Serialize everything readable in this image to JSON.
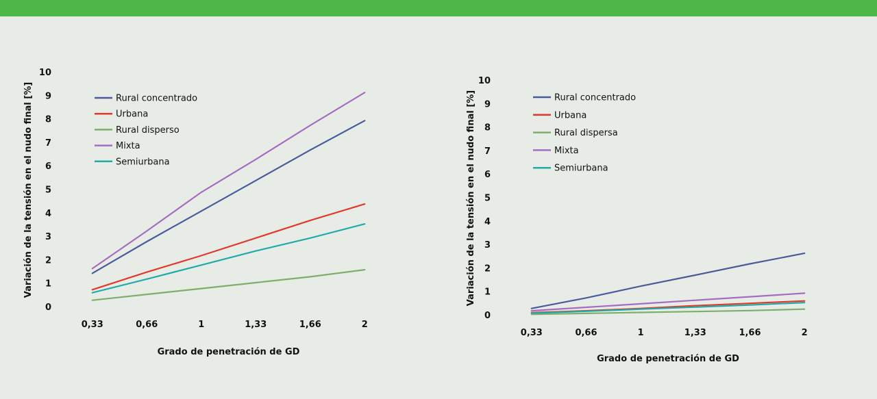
{
  "colors": {
    "top_bar": "#4db848",
    "background": "#e7ede6",
    "series": [
      "#4a5a9c",
      "#e2392c",
      "#7fad6c",
      "#a56cc1",
      "#22aaa8"
    ]
  },
  "chart_data": [
    {
      "type": "line",
      "title": "",
      "xlabel": "Grado de penetración de GD",
      "ylabel": "Variación de la tensión en el nudo final [%]",
      "x": [
        "0,33",
        "0,66",
        "1",
        "1,33",
        "1,66",
        "2"
      ],
      "ylim": [
        0,
        10
      ],
      "yticks": [
        "0",
        "1",
        "2",
        "3",
        "4",
        "5",
        "6",
        "7",
        "8",
        "9",
        "10"
      ],
      "grid": false,
      "legend": "top-left",
      "series": [
        {
          "name": "Rural concentrado",
          "color": "#4a5a9c",
          "values": [
            1.45,
            2.8,
            4.1,
            5.4,
            6.7,
            7.95
          ]
        },
        {
          "name": "Urbana",
          "color": "#e2392c",
          "values": [
            0.75,
            1.5,
            2.2,
            2.95,
            3.7,
            4.4
          ]
        },
        {
          "name": "Rural disperso",
          "color": "#7fad6c",
          "values": [
            0.3,
            0.55,
            0.8,
            1.05,
            1.3,
            1.6
          ]
        },
        {
          "name": "Mixta",
          "color": "#a56cc1",
          "values": [
            1.65,
            3.25,
            4.9,
            6.3,
            7.75,
            9.15
          ]
        },
        {
          "name": "Semiurbana",
          "color": "#22aaa8",
          "values": [
            0.62,
            1.2,
            1.8,
            2.4,
            2.95,
            3.55
          ]
        }
      ]
    },
    {
      "type": "line",
      "title": "",
      "xlabel": "Grado de penetración de GD",
      "ylabel": "Variación de la tensión en el nudo final [%]",
      "x": [
        "0,33",
        "0,66",
        "1",
        "1,33",
        "1,66",
        "2"
      ],
      "ylim": [
        0,
        10
      ],
      "yticks": [
        "0",
        "1",
        "2",
        "3",
        "4",
        "5",
        "6",
        "7",
        "8",
        "9",
        "10"
      ],
      "grid": false,
      "legend": "top-left",
      "series": [
        {
          "name": "Rural concentrado",
          "color": "#4a5a9c",
          "values": [
            0.3,
            0.75,
            1.25,
            1.72,
            2.2,
            2.65
          ]
        },
        {
          "name": "Urbana",
          "color": "#e2392c",
          "values": [
            0.12,
            0.2,
            0.3,
            0.42,
            0.52,
            0.62
          ]
        },
        {
          "name": "Rural dispersa",
          "color": "#7fad6c",
          "values": [
            0.05,
            0.09,
            0.13,
            0.17,
            0.21,
            0.27
          ]
        },
        {
          "name": "Mixta",
          "color": "#a56cc1",
          "values": [
            0.2,
            0.35,
            0.5,
            0.65,
            0.8,
            0.95
          ]
        },
        {
          "name": "Semiurbana",
          "color": "#22aaa8",
          "values": [
            0.1,
            0.18,
            0.27,
            0.36,
            0.45,
            0.55
          ]
        }
      ]
    }
  ]
}
